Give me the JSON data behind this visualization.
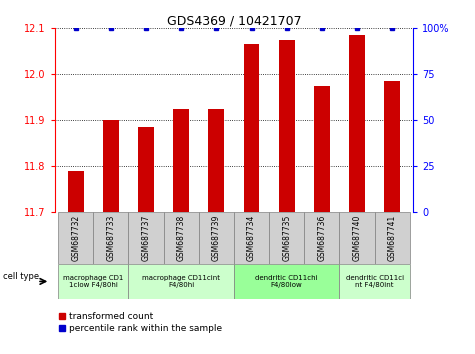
{
  "title": "GDS4369 / 10421707",
  "samples": [
    "GSM687732",
    "GSM687733",
    "GSM687737",
    "GSM687738",
    "GSM687739",
    "GSM687734",
    "GSM687735",
    "GSM687736",
    "GSM687740",
    "GSM687741"
  ],
  "red_values": [
    11.79,
    11.9,
    11.885,
    11.925,
    11.925,
    12.065,
    12.075,
    11.975,
    12.085,
    11.985
  ],
  "blue_values": [
    100,
    100,
    100,
    100,
    100,
    100,
    100,
    100,
    100,
    100
  ],
  "ylim_left": [
    11.7,
    12.1
  ],
  "ylim_right": [
    0,
    100
  ],
  "yticks_left": [
    11.7,
    11.8,
    11.9,
    12.0,
    12.1
  ],
  "yticks_right": [
    0,
    25,
    50,
    75,
    100
  ],
  "cell_groups": [
    {
      "label": "macrophage CD1\n1clow F4/80hi",
      "start": 0,
      "end": 2,
      "color": "#ccffcc"
    },
    {
      "label": "macrophage CD11cint\nF4/80hi",
      "start": 2,
      "end": 5,
      "color": "#ccffcc"
    },
    {
      "label": "dendritic CD11chi\nF4/80low",
      "start": 5,
      "end": 8,
      "color": "#99ff99"
    },
    {
      "label": "dendritic CD11ci\nnt F4/80int",
      "start": 8,
      "end": 10,
      "color": "#ccffcc"
    }
  ],
  "cell_type_label": "cell type",
  "legend_red": "transformed count",
  "legend_blue": "percentile rank within the sample",
  "bar_color_red": "#cc0000",
  "bar_color_blue": "#0000cc",
  "baseline": 11.7,
  "bar_width": 0.45,
  "grid_color": "black",
  "tick_label_size": 7,
  "sample_box_color": "#d0d0d0",
  "sample_text_size": 5.5
}
